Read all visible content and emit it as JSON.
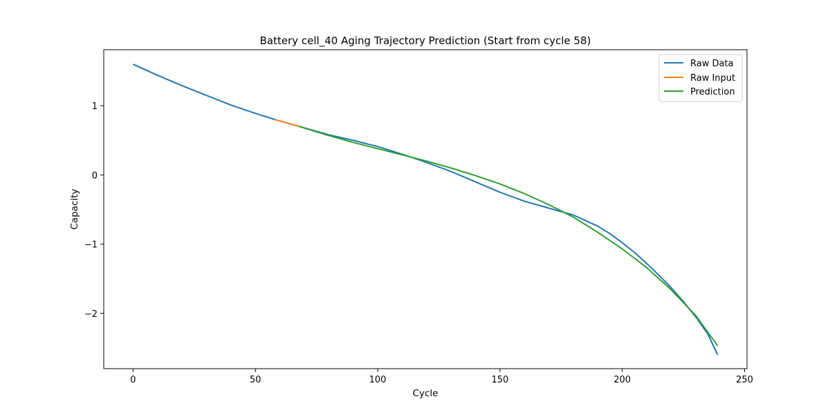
{
  "chart_data": {
    "type": "line",
    "title": "Battery cell_40 Aging Trajectory Prediction (Start from cycle 58)",
    "xlabel": "Cycle",
    "ylabel": "Capacity",
    "xlim": [
      -12,
      251
    ],
    "ylim": [
      -2.8,
      1.81
    ],
    "xticks": [
      {
        "value": 0,
        "label": "0"
      },
      {
        "value": 50,
        "label": "50"
      },
      {
        "value": 100,
        "label": "100"
      },
      {
        "value": 150,
        "label": "150"
      },
      {
        "value": 200,
        "label": "200"
      },
      {
        "value": 250,
        "label": "250"
      }
    ],
    "yticks": [
      {
        "value": 1,
        "label": "1"
      },
      {
        "value": 0,
        "label": "0"
      },
      {
        "value": -1,
        "label": "−1"
      },
      {
        "value": -2,
        "label": "−2"
      }
    ],
    "grid": false,
    "legend_position": "top-right",
    "series": [
      {
        "name": "Raw Data",
        "color": "#1f77b4",
        "x": [
          0,
          10,
          20,
          30,
          40,
          50,
          58,
          68,
          80,
          90,
          100,
          110,
          120,
          130,
          140,
          150,
          160,
          170,
          180,
          190,
          195,
          200,
          205,
          210,
          215,
          220,
          225,
          230,
          235,
          239
        ],
        "y": [
          1.6,
          1.44,
          1.29,
          1.15,
          1.01,
          0.89,
          0.8,
          0.7,
          0.58,
          0.5,
          0.41,
          0.3,
          0.18,
          0.05,
          -0.1,
          -0.25,
          -0.38,
          -0.48,
          -0.58,
          -0.74,
          -0.85,
          -0.98,
          -1.12,
          -1.28,
          -1.45,
          -1.63,
          -1.83,
          -2.05,
          -2.3,
          -2.6
        ]
      },
      {
        "name": "Raw Input",
        "color": "#ff7f0e",
        "x": [
          58,
          60,
          62,
          64,
          66,
          68
        ],
        "y": [
          0.8,
          0.78,
          0.76,
          0.74,
          0.72,
          0.7
        ]
      },
      {
        "name": "Prediction",
        "color": "#2ca02c",
        "x": [
          68,
          80,
          90,
          100,
          110,
          120,
          130,
          140,
          150,
          160,
          170,
          180,
          190,
          200,
          210,
          220,
          230,
          239
        ],
        "y": [
          0.7,
          0.57,
          0.47,
          0.38,
          0.29,
          0.2,
          0.1,
          -0.01,
          -0.13,
          -0.27,
          -0.43,
          -0.61,
          -0.83,
          -1.07,
          -1.34,
          -1.66,
          -2.03,
          -2.47
        ]
      }
    ]
  }
}
